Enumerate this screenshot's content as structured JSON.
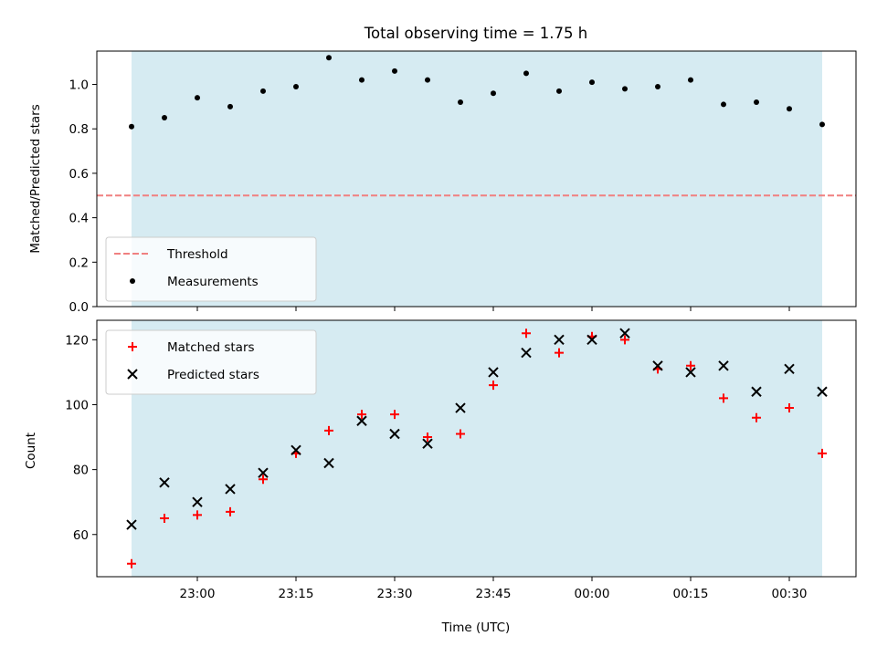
{
  "chart_data": [
    {
      "type": "scatter",
      "title": "Total observing time = 1.75 h",
      "ylabel": "Matched/Predicted stars",
      "ylim": [
        0,
        1.15
      ],
      "yticks": [
        "0.0",
        "0.2",
        "0.4",
        "0.6",
        "0.8",
        "1.0"
      ],
      "x": [
        "22:50",
        "22:55",
        "23:00",
        "23:05",
        "23:10",
        "23:15",
        "23:20",
        "23:25",
        "23:30",
        "23:35",
        "23:40",
        "23:45",
        "23:50",
        "23:55",
        "00:00",
        "00:05",
        "00:10",
        "00:15",
        "00:20",
        "00:25",
        "00:30",
        "00:35"
      ],
      "series": [
        {
          "name": "Measurements",
          "marker": "dot",
          "color": "#000000",
          "values": [
            0.81,
            0.85,
            0.94,
            0.9,
            0.97,
            0.99,
            1.12,
            1.02,
            1.06,
            1.02,
            0.92,
            0.96,
            1.05,
            0.97,
            1.01,
            0.98,
            0.99,
            1.02,
            0.91,
            0.92,
            0.89,
            0.82
          ]
        }
      ],
      "threshold": {
        "name": "Threshold",
        "value": 0.5,
        "color": "#f08080"
      },
      "shaded_span": [
        "22:50",
        "00:35"
      ],
      "shade_color": "#add8e6",
      "legend_position": "lower-left"
    },
    {
      "type": "scatter",
      "xlabel": "Time (UTC)",
      "ylabel": "Count",
      "ylim": [
        47,
        126
      ],
      "yticks": [
        "60",
        "80",
        "100",
        "120"
      ],
      "xticks": [
        "23:00",
        "23:15",
        "23:30",
        "23:45",
        "00:00",
        "00:15",
        "00:30"
      ],
      "x": [
        "22:50",
        "22:55",
        "23:00",
        "23:05",
        "23:10",
        "23:15",
        "23:20",
        "23:25",
        "23:30",
        "23:35",
        "23:40",
        "23:45",
        "23:50",
        "23:55",
        "00:00",
        "00:05",
        "00:10",
        "00:15",
        "00:20",
        "00:25",
        "00:30",
        "00:35"
      ],
      "series": [
        {
          "name": "Matched stars",
          "marker": "plus",
          "color": "#ff0000",
          "values": [
            51,
            65,
            66,
            67,
            77,
            85,
            92,
            97,
            97,
            90,
            91,
            106,
            122,
            116,
            121,
            120,
            111,
            112,
            102,
            96,
            99,
            85
          ]
        },
        {
          "name": "Predicted stars",
          "marker": "x",
          "color": "#000000",
          "values": [
            63,
            76,
            70,
            74,
            79,
            86,
            82,
            95,
            91,
            88,
            99,
            110,
            116,
            120,
            120,
            122,
            112,
            110,
            112,
            104,
            111,
            104
          ]
        }
      ],
      "shaded_span": [
        "22:50",
        "00:35"
      ],
      "shade_color": "#add8e6",
      "legend_position": "upper-left"
    }
  ]
}
